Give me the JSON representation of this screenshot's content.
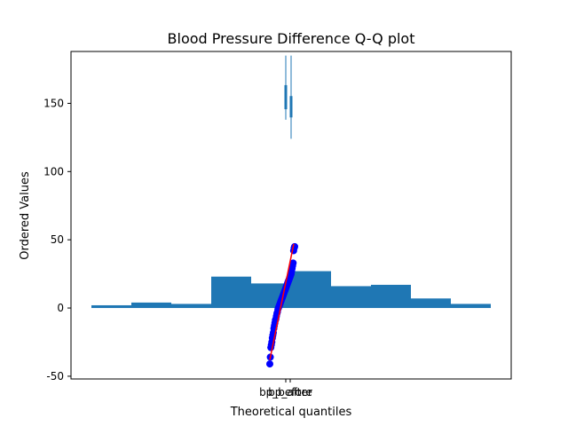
{
  "chart_data": {
    "type": "bar",
    "title": "Blood Pressure Difference Q-Q plot",
    "xlabel": "Theoretical quantiles",
    "ylabel": "Ordered Values",
    "ylim": [
      -52,
      188
    ],
    "y_ticks": [
      -50,
      0,
      50,
      100,
      150
    ],
    "x_tick_labels": [
      "bp_before",
      "bp_after"
    ],
    "grid": false,
    "colors": {
      "bars": "#1f77b4",
      "points": "#0000ff",
      "line": "#ff0000",
      "box": "#1f77b4"
    },
    "histogram": {
      "heights": [
        2,
        4,
        3,
        23,
        18,
        27,
        16,
        17,
        7,
        3
      ]
    },
    "boxplots": [
      {
        "label": "bp_before",
        "whisker_low": 138,
        "whisker_high": 185,
        "box_low": 146,
        "box_high": 163
      },
      {
        "label": "bp_after",
        "whisker_low": 124,
        "whisker_high": 185,
        "box_low": 140,
        "box_high": 155
      }
    ],
    "qq_line": {
      "y_start": -38,
      "y_end": 47
    },
    "qq_points": [
      -41,
      -36,
      -29,
      -27,
      -25,
      -22,
      -20,
      -18,
      -15,
      -13,
      -11,
      -9,
      -8,
      -6,
      -4,
      -3,
      -1,
      0,
      1,
      2,
      3,
      4,
      5,
      6,
      7,
      8,
      9,
      10,
      11,
      12,
      13,
      14,
      15,
      16,
      17,
      18,
      19,
      20,
      21,
      22,
      23,
      24,
      25,
      27,
      29,
      31,
      33,
      42,
      44,
      45
    ]
  }
}
